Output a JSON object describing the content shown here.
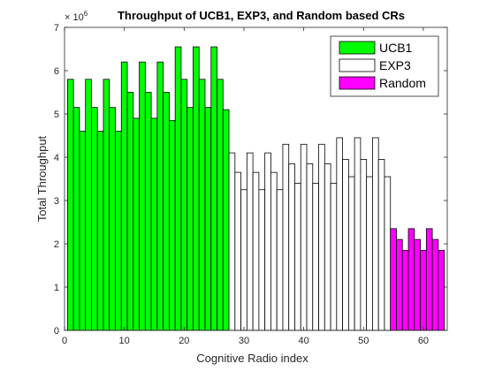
{
  "chart_data": {
    "type": "bar",
    "title": "Throughput of UCB1, EXP3, and Random based CRs",
    "xlabel": "Cognitive Radio index",
    "ylabel": "Total Throughput",
    "y_exponent_label": "× 10",
    "y_exponent_power": "6",
    "xlim": [
      0,
      64
    ],
    "ylim": [
      0,
      7
    ],
    "xticks": [
      "0",
      "10",
      "20",
      "30",
      "40",
      "50",
      "60"
    ],
    "yticks": [
      "0",
      "1",
      "2",
      "3",
      "4",
      "5",
      "6",
      "7"
    ],
    "grid": false,
    "legend_position": "top-right",
    "series": [
      {
        "name": "UCB1",
        "color": "#00FF00",
        "x": [
          1,
          2,
          3,
          4,
          5,
          6,
          7,
          8,
          9,
          10,
          11,
          12,
          13,
          14,
          15,
          16,
          17,
          18,
          19,
          20,
          21,
          22,
          23,
          24,
          25,
          26,
          27
        ],
        "values": [
          5.8,
          5.15,
          4.6,
          5.8,
          5.15,
          4.6,
          5.8,
          5.15,
          4.6,
          6.2,
          5.5,
          4.9,
          6.2,
          5.5,
          4.9,
          6.2,
          5.5,
          4.85,
          6.55,
          5.8,
          5.15,
          6.55,
          5.8,
          5.15,
          6.55,
          5.8,
          5.1
        ]
      },
      {
        "name": "EXP3",
        "color": "#FFFFFF",
        "x": [
          28,
          29,
          30,
          31,
          32,
          33,
          34,
          35,
          36,
          37,
          38,
          39,
          40,
          41,
          42,
          43,
          44,
          45,
          46,
          47,
          48,
          49,
          50,
          51,
          52,
          53,
          54
        ],
        "values": [
          4.1,
          3.65,
          3.25,
          4.1,
          3.65,
          3.25,
          4.1,
          3.65,
          3.25,
          4.3,
          3.85,
          3.4,
          4.3,
          3.85,
          3.4,
          4.3,
          3.85,
          3.4,
          4.45,
          3.95,
          3.55,
          4.45,
          3.95,
          3.55,
          4.45,
          3.95,
          3.55
        ]
      },
      {
        "name": "Random",
        "color": "#FF00FF",
        "x": [
          55,
          56,
          57,
          58,
          59,
          60,
          61,
          62,
          63
        ],
        "values": [
          2.35,
          2.1,
          1.85,
          2.35,
          2.1,
          1.85,
          2.35,
          2.1,
          1.85
        ]
      }
    ]
  }
}
